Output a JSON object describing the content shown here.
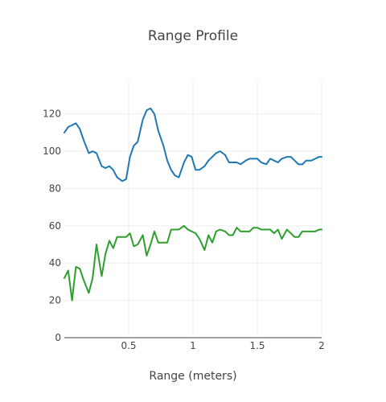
{
  "chart_data": {
    "type": "line",
    "title": "Range Profile",
    "xlabel": "Range (meters)",
    "ylabel": "",
    "xlim": [
      0,
      2
    ],
    "ylim": [
      0,
      138
    ],
    "grid": true,
    "x_ticks": [
      0.5,
      1,
      1.5,
      2
    ],
    "x_tick_labels": [
      "0.5",
      "1",
      "1.5",
      "2"
    ],
    "y_ticks": [
      0,
      20,
      40,
      60,
      80,
      100,
      120
    ],
    "y_tick_labels": [
      "0",
      "20",
      "40",
      "60",
      "80",
      "100",
      "120"
    ],
    "x": [
      0.0,
      0.03,
      0.06,
      0.09,
      0.12,
      0.15,
      0.19,
      0.22,
      0.25,
      0.29,
      0.32,
      0.35,
      0.38,
      0.41,
      0.45,
      0.48,
      0.51,
      0.54,
      0.57,
      0.61,
      0.64,
      0.67,
      0.7,
      0.73,
      0.77,
      0.8,
      0.83,
      0.86,
      0.89,
      0.93,
      0.96,
      0.99,
      1.02,
      1.05,
      1.09,
      1.12,
      1.15,
      1.18,
      1.21,
      1.25,
      1.28,
      1.31,
      1.34,
      1.37,
      1.41,
      1.44,
      1.47,
      1.5,
      1.53,
      1.57,
      1.6,
      1.63,
      1.66,
      1.69,
      1.73,
      1.76,
      1.79,
      1.82,
      1.85,
      1.88,
      1.92,
      1.95,
      1.98,
      2.0
    ],
    "series": [
      {
        "color": "#1f77b4",
        "values": [
          110,
          113,
          114,
          115,
          112,
          106,
          99,
          100,
          99,
          92,
          91,
          92,
          90,
          86,
          84,
          85,
          97,
          103,
          105,
          117,
          122,
          123,
          120,
          111,
          103,
          95,
          90,
          87,
          86,
          94,
          98,
          97,
          90,
          90,
          92,
          95,
          97,
          99,
          100,
          98,
          94,
          94,
          94,
          93,
          95,
          96,
          96,
          96,
          94,
          93,
          96,
          95,
          94,
          96,
          97,
          97,
          95,
          93,
          93,
          95,
          95,
          96,
          97,
          97
        ]
      },
      {
        "color": "#2ca02c",
        "values": [
          32,
          36,
          20,
          38,
          37,
          31,
          24,
          32,
          50,
          33,
          45,
          52,
          48,
          54,
          54,
          54,
          56,
          49,
          50,
          55,
          44,
          50,
          57,
          51,
          51,
          51,
          58,
          58,
          58,
          60,
          58,
          57,
          56,
          53,
          47,
          55,
          51,
          57,
          58,
          57,
          55,
          55,
          59,
          57,
          57,
          57,
          59,
          59,
          58,
          58,
          58,
          56,
          58,
          53,
          58,
          56,
          54,
          54,
          57,
          57,
          57,
          57,
          58,
          58
        ]
      }
    ]
  }
}
